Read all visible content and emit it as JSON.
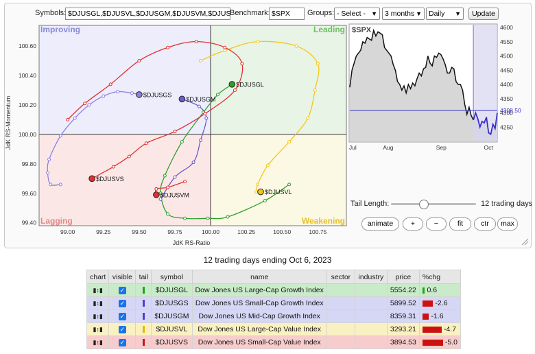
{
  "controls": {
    "symbols_label": "Symbols:",
    "symbols_value": "$DJUSGL,$DJUSVL,$DJUSGM,$DJUSVM,$DJUSGS,$DJUSVS",
    "benchmark_label": "Benchmark:",
    "benchmark_value": "$SPX",
    "groups_label": "Groups:",
    "groups_value": "- Select -",
    "period_value": "3 months",
    "frequency_value": "Daily",
    "update_label": "Update"
  },
  "rrg": {
    "quadrants": {
      "improving": "Improving",
      "leading": "Leading",
      "lagging": "Lagging",
      "weakening": "Weakening"
    },
    "quadrant_colors": {
      "improving": "#ededfb",
      "leading": "#e8f4e6",
      "lagging": "#fbe8e6",
      "weakening": "#fbf8e4"
    },
    "ylabel": "JdK RS-Momentum",
    "xlabel": "JdK RS-Ratio",
    "x_ticks": [
      "99.00",
      "99.25",
      "99.50",
      "99.75",
      "100.00",
      "100.25",
      "100.50",
      "100.75"
    ],
    "y_ticks": [
      "100.60",
      "100.40",
      "100.20",
      "100.00",
      "99.80",
      "99.60",
      "99.40"
    ]
  },
  "chart_data": [
    {
      "type": "scatter",
      "title": "",
      "xlabel": "JdK RS-Ratio",
      "ylabel": "JdK RS-Momentum",
      "xlim": [
        98.8,
        100.95
      ],
      "ylim": [
        99.38,
        100.74
      ],
      "series": [
        {
          "name": "$DJUSGL",
          "color": "#2ca02c",
          "points": [
            [
              100.55,
              99.66
            ],
            [
              100.38,
              99.55
            ],
            [
              100.12,
              99.44
            ],
            [
              99.98,
              99.43
            ],
            [
              99.82,
              99.43
            ],
            [
              99.7,
              99.46
            ],
            [
              99.65,
              99.6
            ],
            [
              99.68,
              99.72
            ],
            [
              99.8,
              99.95
            ],
            [
              99.95,
              100.15
            ],
            [
              100.05,
              100.27
            ],
            [
              100.15,
              100.34
            ]
          ]
        },
        {
          "name": "$DJUSVL",
          "color": "#f5c518",
          "points": [
            [
              99.93,
              100.5
            ],
            [
              100.1,
              100.57
            ],
            [
              100.33,
              100.63
            ],
            [
              100.6,
              100.6
            ],
            [
              100.75,
              100.48
            ],
            [
              100.73,
              100.3
            ],
            [
              100.68,
              100.11
            ],
            [
              100.55,
              99.95
            ],
            [
              100.4,
              99.79
            ],
            [
              100.33,
              99.66
            ],
            [
              100.32,
              99.61
            ],
            [
              100.35,
              99.61
            ]
          ]
        },
        {
          "name": "$DJUSGM",
          "color": "#6a5acd",
          "points": [
            [
              99.65,
              99.56
            ],
            [
              99.75,
              99.71
            ],
            [
              99.88,
              99.81
            ],
            [
              99.93,
              99.96
            ],
            [
              99.97,
              100.11
            ],
            [
              99.92,
              100.19
            ],
            [
              99.8,
              100.24
            ]
          ]
        },
        {
          "name": "$DJUSGS",
          "color": "#8c7fe0",
          "points": [
            [
              98.95,
              99.66
            ],
            [
              98.88,
              99.66
            ],
            [
              98.86,
              99.74
            ],
            [
              98.87,
              99.83
            ],
            [
              98.95,
              99.99
            ],
            [
              99.05,
              100.11
            ],
            [
              99.15,
              100.2
            ],
            [
              99.25,
              100.26
            ],
            [
              99.35,
              100.29
            ],
            [
              99.45,
              100.28
            ],
            [
              99.5,
              100.27
            ]
          ]
        },
        {
          "name": "$DJUSVM",
          "color": "#e03030",
          "points": [
            [
              99.82,
              99.68
            ],
            [
              99.7,
              99.64
            ],
            [
              99.62,
              99.63
            ],
            [
              99.62,
              99.59
            ]
          ]
        },
        {
          "name": "$DJUSVS",
          "color": "#e03030",
          "points": [
            [
              99.0,
              100.1
            ],
            [
              99.12,
              100.21
            ],
            [
              99.3,
              100.34
            ],
            [
              99.5,
              100.5
            ],
            [
              99.7,
              100.59
            ],
            [
              99.9,
              100.63
            ],
            [
              100.1,
              100.59
            ],
            [
              100.22,
              100.48
            ],
            [
              100.17,
              100.3
            ],
            [
              99.96,
              100.14
            ],
            [
              99.75,
              100.02
            ],
            [
              99.55,
              99.94
            ],
            [
              99.43,
              99.85
            ],
            [
              99.32,
              99.78
            ],
            [
              99.17,
              99.7
            ]
          ]
        }
      ]
    },
    {
      "type": "line",
      "title": "$SPX",
      "x_labels": [
        "Jul",
        "Aug",
        "Sep",
        "Oct"
      ],
      "y_ticks": [
        "4600",
        "4550",
        "4500",
        "4450",
        "4400",
        "4350",
        "4300",
        "4250"
      ],
      "ylim": [
        4200,
        4610
      ],
      "current_value": "4308.50",
      "values": [
        4390,
        4450,
        4475,
        4500,
        4510,
        4520,
        4550,
        4545,
        4565,
        4560,
        4555,
        4590,
        4570,
        4585,
        4580,
        4575,
        4530,
        4520,
        4510,
        4500,
        4470,
        4450,
        4410,
        4400,
        4380,
        4395,
        4370,
        4400,
        4385,
        4405,
        4395,
        4420,
        4440,
        4430,
        4455,
        4460,
        4500,
        4475,
        4465,
        4500,
        4495,
        4510,
        4505,
        4490,
        4470,
        4440,
        4440,
        4460,
        4455,
        4410,
        4400,
        4400,
        4380,
        4330,
        4295,
        4320,
        4290,
        4275,
        4300,
        4280,
        4250,
        4270,
        4265,
        4285,
        4230,
        4225,
        4260,
        4245,
        4300
      ]
    }
  ],
  "tail": {
    "label": "Tail Length:",
    "value_text": "12 trading days",
    "position": 0.38
  },
  "zoom_buttons": [
    "animate",
    "+",
    "−",
    "fit",
    "ctr",
    "max"
  ],
  "caption": "12 trading days ending Oct 6, 2023",
  "table": {
    "headers": [
      "chart",
      "visible",
      "tail",
      "symbol",
      "name",
      "sector",
      "industry",
      "price",
      "%chg"
    ],
    "rows": [
      {
        "symbol": "$DJUSGL",
        "name": "Dow Jones US Large-Cap Growth Index",
        "price": "5554.22",
        "chg": "0.6",
        "bg": "#c9ebc9",
        "color": "#1fa31f"
      },
      {
        "symbol": "$DJUSGS",
        "name": "Dow Jones US Small-Cap Growth Index",
        "price": "5899.52",
        "chg": "-2.6",
        "bg": "#d6d6f5",
        "color": "#4b3bd1"
      },
      {
        "symbol": "$DJUSGM",
        "name": "Dow Jones US Mid-Cap Growth Index",
        "price": "8359.31",
        "chg": "-1.6",
        "bg": "#d6d6f5",
        "color": "#4b3bd1"
      },
      {
        "symbol": "$DJUSVL",
        "name": "Dow Jones US Large-Cap Value Index",
        "price": "3293.21",
        "chg": "-4.7",
        "bg": "#faf1c2",
        "color": "#e6b800"
      },
      {
        "symbol": "$DJUSVS",
        "name": "Dow Jones US Small-Cap Value Index",
        "price": "3894.53",
        "chg": "-5.0",
        "bg": "#f7cccc",
        "color": "#cc1111"
      }
    ]
  }
}
